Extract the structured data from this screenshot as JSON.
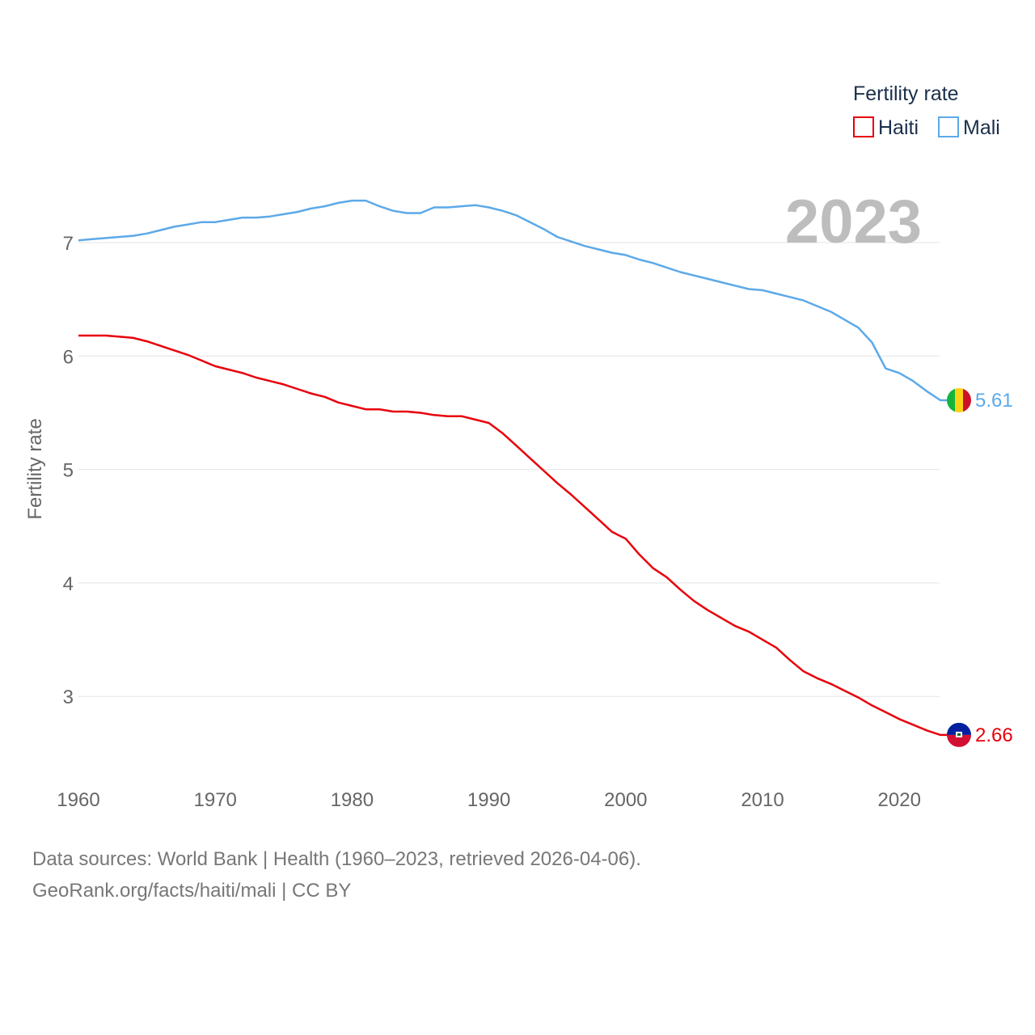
{
  "chart_data": {
    "type": "line",
    "year_badge": "2023",
    "ylabel": "Fertility rate",
    "xlim": [
      1960,
      2023
    ],
    "ylim": [
      2.5,
      7.6
    ],
    "yticks": [
      3,
      4,
      5,
      6,
      7
    ],
    "xticks": [
      1960,
      1970,
      1980,
      1990,
      2000,
      2010,
      2020
    ],
    "legend": {
      "title": "Fertility rate",
      "position": "top-right"
    },
    "x": [
      1960,
      1961,
      1962,
      1963,
      1964,
      1965,
      1966,
      1967,
      1968,
      1969,
      1970,
      1971,
      1972,
      1973,
      1974,
      1975,
      1976,
      1977,
      1978,
      1979,
      1980,
      1981,
      1982,
      1983,
      1984,
      1985,
      1986,
      1987,
      1988,
      1989,
      1990,
      1991,
      1992,
      1993,
      1994,
      1995,
      1996,
      1997,
      1998,
      1999,
      2000,
      2001,
      2002,
      2003,
      2004,
      2005,
      2006,
      2007,
      2008,
      2009,
      2010,
      2011,
      2012,
      2013,
      2014,
      2015,
      2016,
      2017,
      2018,
      2019,
      2020,
      2021,
      2022,
      2023
    ],
    "series": [
      {
        "name": "Haiti",
        "color": "#e8000b",
        "end_label": "2.66",
        "values": [
          6.18,
          6.18,
          6.18,
          6.17,
          6.16,
          6.13,
          6.09,
          6.05,
          6.01,
          5.96,
          5.91,
          5.88,
          5.85,
          5.81,
          5.78,
          5.75,
          5.71,
          5.67,
          5.64,
          5.59,
          5.56,
          5.53,
          5.53,
          5.51,
          5.51,
          5.5,
          5.48,
          5.47,
          5.47,
          5.44,
          5.41,
          5.32,
          5.21,
          5.1,
          4.99,
          4.88,
          4.78,
          4.67,
          4.56,
          4.45,
          4.39,
          4.25,
          4.13,
          4.05,
          3.94,
          3.84,
          3.76,
          3.69,
          3.62,
          3.57,
          3.5,
          3.43,
          3.32,
          3.22,
          3.16,
          3.11,
          3.05,
          2.99,
          2.92,
          2.86,
          2.8,
          2.75,
          2.7,
          2.66
        ]
      },
      {
        "name": "Mali",
        "color": "#5ca9e8",
        "end_label": "5.61",
        "values": [
          7.02,
          7.03,
          7.04,
          7.05,
          7.06,
          7.08,
          7.11,
          7.14,
          7.16,
          7.18,
          7.18,
          7.2,
          7.22,
          7.22,
          7.23,
          7.25,
          7.27,
          7.3,
          7.32,
          7.35,
          7.37,
          7.37,
          7.32,
          7.28,
          7.26,
          7.26,
          7.31,
          7.31,
          7.32,
          7.33,
          7.31,
          7.28,
          7.24,
          7.18,
          7.12,
          7.05,
          7.01,
          6.97,
          6.94,
          6.91,
          6.89,
          6.85,
          6.82,
          6.78,
          6.74,
          6.71,
          6.68,
          6.65,
          6.62,
          6.59,
          6.58,
          6.55,
          6.52,
          6.49,
          6.44,
          6.39,
          6.32,
          6.25,
          6.12,
          5.89,
          5.85,
          5.78,
          5.69,
          5.61
        ]
      }
    ]
  },
  "source": {
    "line1": "Data sources: World Bank | Health (1960–2023, retrieved 2026-04-06).",
    "line2": "GeoRank.org/facts/haiti/mali | CC BY"
  }
}
